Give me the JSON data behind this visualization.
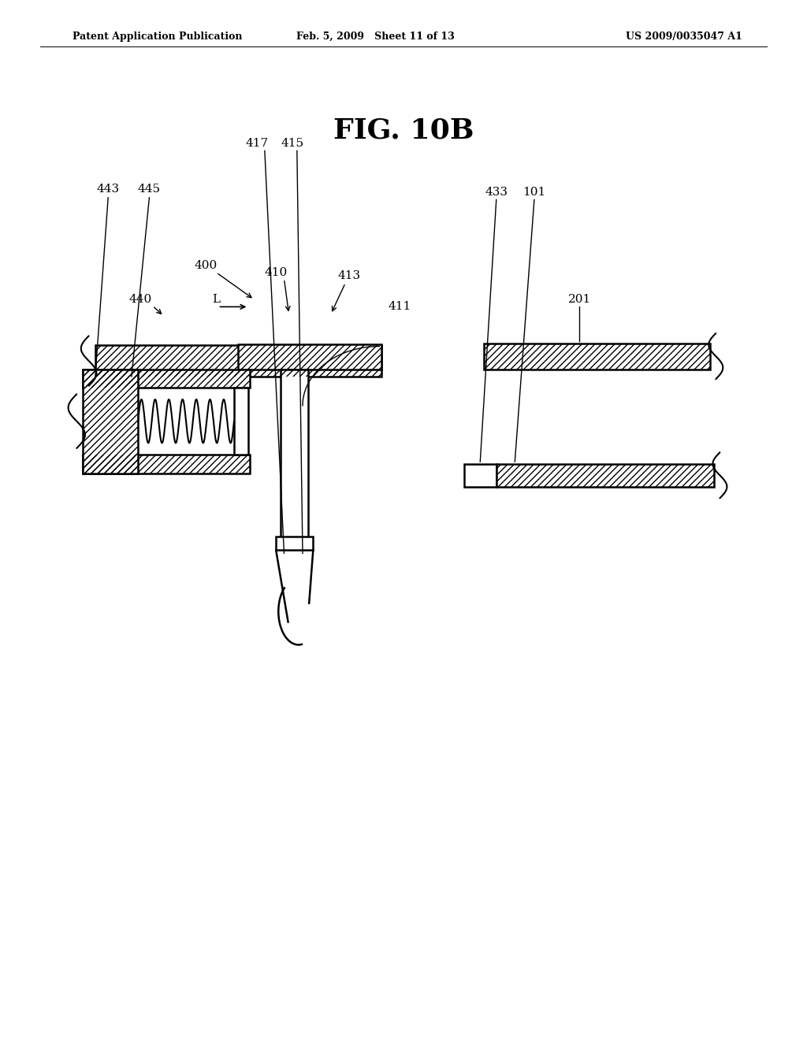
{
  "title": "FIG. 10B",
  "header_left": "Patent Application Publication",
  "header_center": "Feb. 5, 2009   Sheet 11 of 13",
  "header_right": "US 2009/0035047 A1",
  "bg_color": "#ffffff",
  "fg_color": "#000000"
}
